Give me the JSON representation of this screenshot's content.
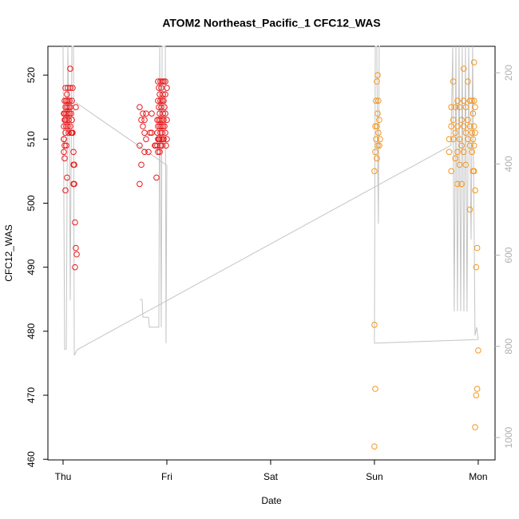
{
  "chart_data": {
    "type": "scatter",
    "title": "ATOM2 Northeast_Pacific_1 CFC12_WAS",
    "x_label": "Date",
    "y_label": "CFC12_WAS",
    "xlim": [
      -0.146,
      4.162
    ],
    "xticks": [
      {
        "value": 0,
        "label": "Thu"
      },
      {
        "value": 1,
        "label": "Fri"
      },
      {
        "value": 2,
        "label": "Sat"
      },
      {
        "value": 3,
        "label": "Sun"
      },
      {
        "value": 4,
        "label": "Mon"
      }
    ],
    "ylim": [
      459.9,
      524.5
    ],
    "yticks": [
      460,
      470,
      480,
      490,
      500,
      510,
      520
    ],
    "y2lim": [
      1049,
      142
    ],
    "y2ticks": [
      200,
      400,
      600,
      800,
      1000
    ],
    "y2_color": "#b0b0b0",
    "series": [
      {
        "type": "line",
        "axis": "y2",
        "color": "#c4c4c4",
        "x": [
          0,
          0.015,
          0.031,
          0.046,
          0.062,
          0.069,
          0.085,
          0.1,
          0.108,
          0.123,
          0.138,
          3.738,
          3.754,
          3.769,
          3.785,
          3.8,
          3.815,
          3.831,
          3.846,
          3.862,
          3.877,
          3.892,
          3.908,
          3.931,
          3.946,
          3.969,
          3.985,
          4.0,
          null,
          0.123,
          1.0,
          null,
          0.738,
          0.762,
          0.769,
          0.823,
          0.831,
          0.923,
          0.931,
          0.946,
          0.954,
          0.985,
          0.992,
          1.0,
          null,
          4.0,
          3.0,
          3.008,
          3.023,
          3.031,
          3.038,
          3.046,
          3.054
        ],
        "values": [
          142,
          806,
          806,
          142,
          391,
          699,
          142,
          142,
          820,
          813,
          807,
          359,
          142,
          723,
          142,
          723,
          142,
          723,
          142,
          723,
          142,
          723,
          142,
          566,
          142,
          776,
          758,
          785,
          null,
          265,
          403,
          null,
          697,
          697,
          736,
          736,
          758,
          758,
          142,
          758,
          142,
          142,
          793,
          403,
          null,
          785,
          793,
          142,
          142,
          391,
          531,
          142,
          142
        ]
      },
      {
        "type": "scatter",
        "color": "#e8191c",
        "x": [
          0.008,
          0.008,
          0.008,
          0.008,
          0.008,
          0.015,
          0.015,
          0.015,
          0.015,
          0.015,
          0.023,
          0.023,
          0.023,
          0.023,
          0.023,
          0.031,
          0.031,
          0.031,
          0.031,
          0.038,
          0.038,
          0.038,
          0.038,
          0.046,
          0.046,
          0.046,
          0.046,
          0.054,
          0.054,
          0.054,
          0.062,
          0.062,
          0.069,
          0.069,
          0.069,
          0.069,
          0.077,
          0.077,
          0.085,
          0.085,
          0.085,
          0.092,
          0.092,
          0.1,
          0.1,
          0.1,
          0.108,
          0.108,
          0.115,
          0.115,
          0.123,
          0.123,
          0.131,
          0.738,
          0.738,
          0.738,
          0.754,
          0.754,
          0.769,
          0.769,
          0.785,
          0.785,
          0.785,
          0.8,
          0.8,
          0.823,
          0.838,
          0.854,
          0.854,
          0.885,
          0.892,
          0.9,
          0.908,
          0.908,
          0.908,
          0.915,
          0.915,
          0.915,
          0.915,
          0.915,
          0.923,
          0.923,
          0.923,
          0.923,
          0.931,
          0.931,
          0.931,
          0.931,
          0.931,
          0.938,
          0.938,
          0.938,
          0.938,
          0.938,
          0.946,
          0.946,
          0.946,
          0.946,
          0.954,
          0.954,
          0.954,
          0.954,
          0.954,
          0.962,
          0.962,
          0.962,
          0.962,
          0.969,
          0.969,
          0.969,
          0.969,
          0.977,
          0.977,
          0.985,
          0.985,
          0.985,
          0.985,
          0.992,
          1.0,
          1.0,
          1.0
        ],
        "values": [
          510,
          514,
          512,
          510,
          508,
          516,
          514,
          513,
          507,
          509,
          515,
          518,
          511,
          513,
          502,
          516,
          514,
          512,
          509,
          517,
          515,
          513,
          504,
          518,
          516,
          514,
          512,
          515,
          513,
          511,
          516,
          514,
          521,
          518,
          515,
          512,
          514,
          511,
          516,
          513,
          511,
          518,
          511,
          508,
          503,
          506,
          506,
          503,
          497,
          490,
          515,
          493,
          492,
          515,
          509,
          503,
          513,
          506,
          514,
          512,
          513,
          511,
          508,
          514,
          510,
          508,
          511,
          514,
          511,
          509,
          509,
          504,
          513,
          511,
          509,
          519,
          516,
          512,
          510,
          508,
          518,
          515,
          513,
          510,
          517,
          514,
          512,
          510,
          508,
          519,
          516,
          513,
          511,
          509,
          518,
          515,
          512,
          510,
          519,
          516,
          513,
          511,
          509,
          517,
          514,
          512,
          510,
          519,
          516,
          513,
          510,
          515,
          512,
          519,
          517,
          514,
          511,
          509,
          518,
          513,
          510
        ]
      },
      {
        "type": "scatter",
        "color": "#f5961e",
        "x": [
          3.0,
          3.0,
          3.0,
          3.008,
          3.008,
          3.008,
          3.015,
          3.015,
          3.023,
          3.023,
          3.023,
          3.031,
          3.031,
          3.031,
          3.038,
          3.038,
          3.046,
          3.046,
          3.054,
          3.72,
          3.72,
          3.74,
          3.74,
          3.74,
          3.76,
          3.76,
          3.76,
          3.78,
          3.78,
          3.78,
          3.8,
          3.8,
          3.8,
          3.8,
          3.82,
          3.82,
          3.82,
          3.84,
          3.84,
          3.84,
          3.86,
          3.86,
          3.86,
          3.86,
          3.88,
          3.88,
          3.88,
          3.9,
          3.9,
          3.9,
          3.92,
          3.92,
          3.92,
          3.92,
          3.94,
          3.94,
          3.94,
          3.95,
          3.95,
          3.95,
          3.96,
          3.96,
          3.96,
          3.96,
          3.96,
          3.97,
          3.97,
          3.97,
          3.97,
          3.98,
          3.98,
          3.99,
          3.99,
          4.0
        ],
        "values": [
          505,
          481,
          462,
          508,
          471,
          512,
          510,
          516,
          519,
          512,
          507,
          520,
          514,
          509,
          516,
          511,
          513,
          509,
          510,
          510,
          508,
          515,
          512,
          505,
          519,
          513,
          510,
          515,
          511,
          507,
          516,
          512,
          508,
          503,
          515,
          510,
          506,
          513,
          509,
          503,
          521,
          516,
          512,
          508,
          515,
          511,
          506,
          519,
          513,
          510,
          516,
          512,
          509,
          499,
          516,
          511,
          508,
          514,
          510,
          505,
          522,
          516,
          512,
          509,
          505,
          515,
          511,
          502,
          465,
          490,
          470,
          493,
          471,
          477
        ]
      }
    ]
  }
}
